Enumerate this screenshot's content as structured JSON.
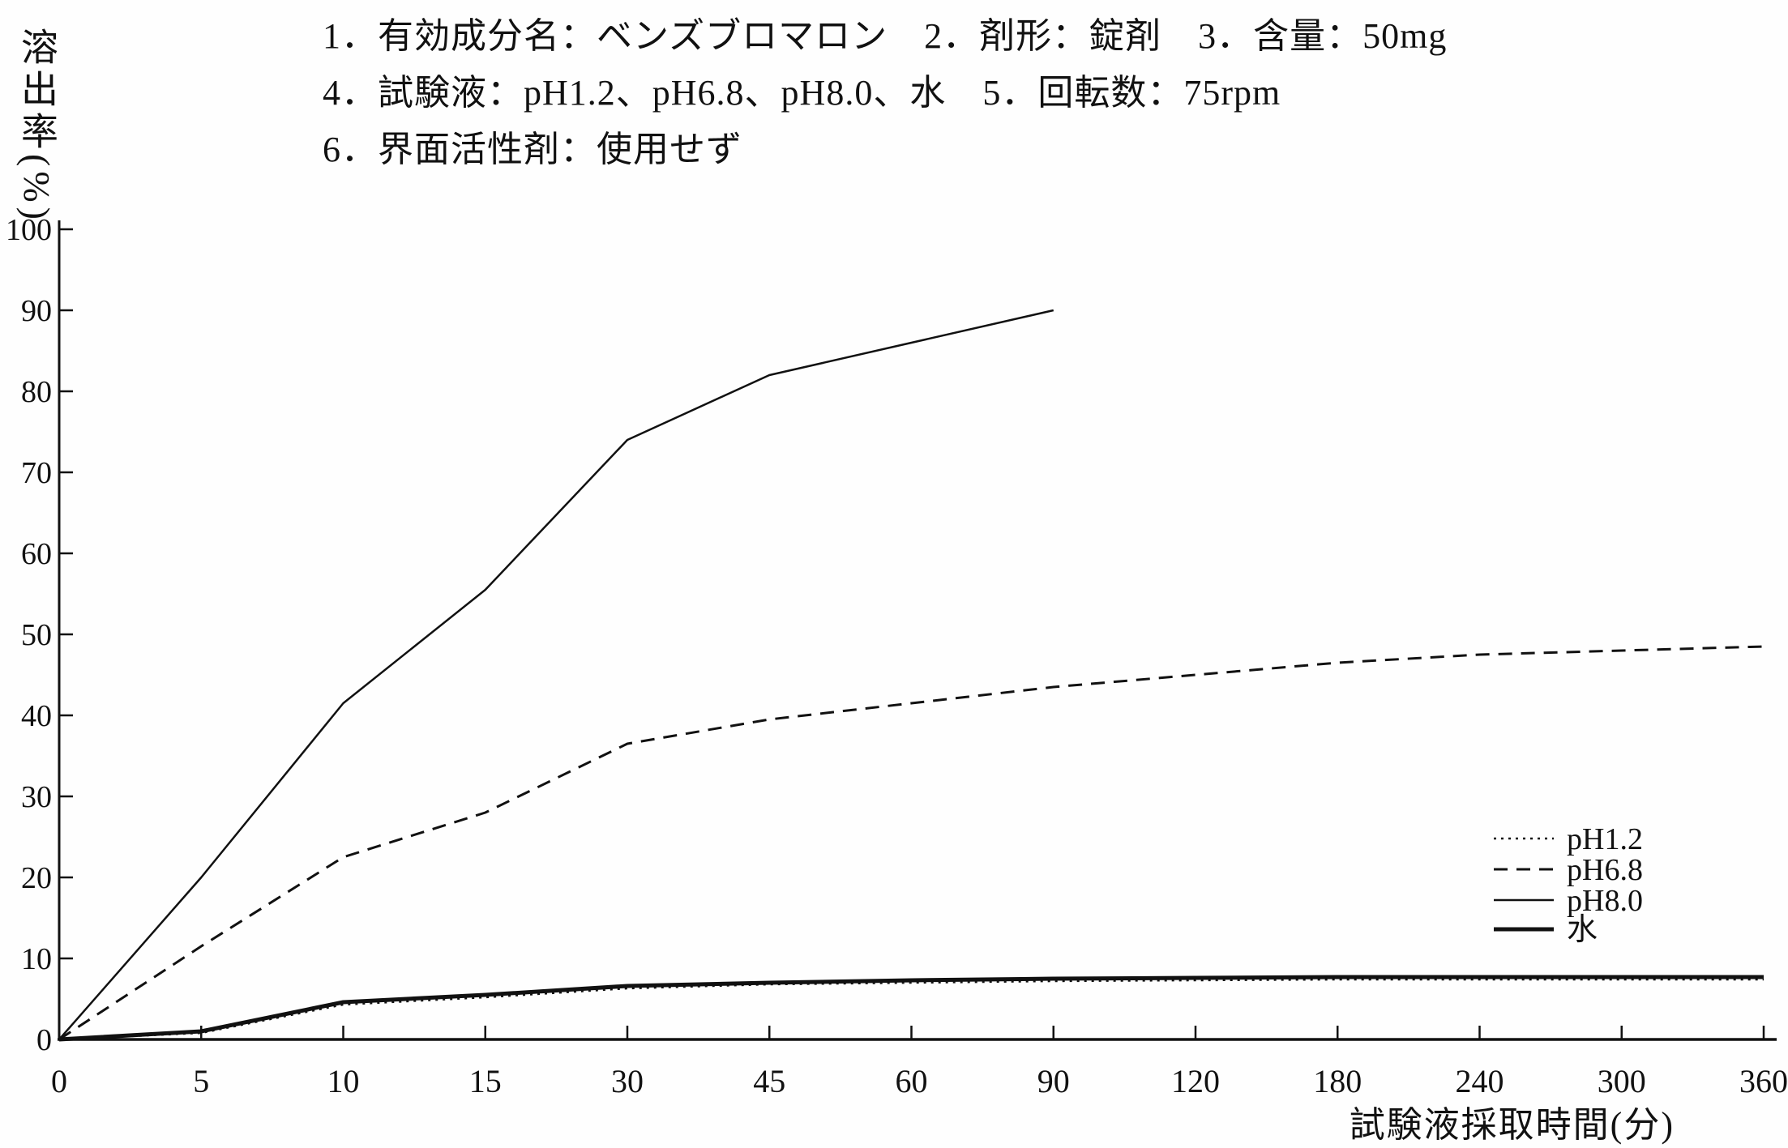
{
  "header": {
    "line1": "1．有効成分名：ベンズブロマロン　2．剤形：錠剤　3．含量：50mg",
    "line2": "4．試験液：pH1.2、pH6.8、pH8.0、水　5．回転数：75rpm",
    "line3": "6．界面活性剤：使用せず"
  },
  "chart_data": {
    "type": "line",
    "title": "",
    "xlabel": "試験液採取時間(分)",
    "ylabel": "溶出率(%)",
    "x_ticks": [
      0,
      5,
      10,
      15,
      30,
      45,
      60,
      90,
      120,
      180,
      240,
      300,
      360
    ],
    "x_axis_spacing": "equal-categorical",
    "y_ticks": [
      0,
      10,
      20,
      30,
      40,
      50,
      60,
      70,
      80,
      90,
      100
    ],
    "ylim": [
      0,
      100
    ],
    "grid": false,
    "legend_position": "right-lower-inside",
    "series": [
      {
        "name": "pH1.2",
        "style": "dotted",
        "x": [
          0,
          5,
          10,
          15,
          30,
          45,
          60,
          90,
          120,
          180,
          240,
          300,
          360
        ],
        "y": [
          0,
          0.8,
          4.3,
          5.2,
          6.3,
          6.8,
          7.0,
          7.2,
          7.3,
          7.4,
          7.4,
          7.4,
          7.4
        ]
      },
      {
        "name": "pH6.8",
        "style": "dashed",
        "x": [
          0,
          5,
          10,
          15,
          30,
          45,
          60,
          90,
          120,
          180,
          240,
          300,
          360
        ],
        "y": [
          0,
          11.5,
          22.5,
          28,
          36.5,
          39.5,
          41.5,
          43.5,
          45,
          46.5,
          47.5,
          48,
          48.5
        ]
      },
      {
        "name": "pH8.0",
        "style": "solid",
        "x": [
          0,
          5,
          10,
          15,
          30,
          45,
          60,
          90
        ],
        "y": [
          0,
          20,
          41.5,
          55.5,
          74,
          82,
          86,
          90
        ]
      },
      {
        "name": "水",
        "style": "solid-thick",
        "x": [
          0,
          5,
          10,
          15,
          30,
          45,
          60,
          90,
          120,
          180,
          240,
          300,
          360
        ],
        "y": [
          0,
          1,
          4.6,
          5.5,
          6.6,
          7.0,
          7.3,
          7.5,
          7.6,
          7.7,
          7.7,
          7.7,
          7.7
        ]
      }
    ]
  },
  "ink_color": "#111111",
  "paper_color": "#fefefe"
}
